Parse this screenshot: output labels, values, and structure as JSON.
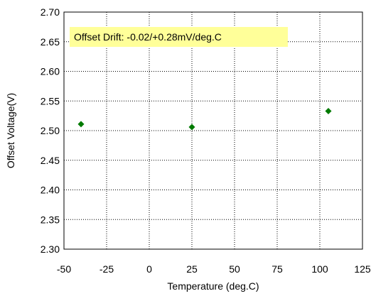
{
  "chart_data": {
    "type": "scatter",
    "title": "",
    "xlabel": "Temperature (deg.C)",
    "ylabel": "Offset Voltage(V)",
    "xlim": [
      -50,
      125
    ],
    "ylim": [
      2.3,
      2.7
    ],
    "xticks": [
      -50,
      -25,
      0,
      25,
      50,
      75,
      100,
      125
    ],
    "yticks": [
      2.3,
      2.35,
      2.4,
      2.45,
      2.5,
      2.55,
      2.6,
      2.65,
      2.7
    ],
    "xtick_labels": [
      "-50",
      "-25",
      "0",
      "25",
      "50",
      "75",
      "100",
      "125"
    ],
    "ytick_labels": [
      "2.30",
      "2.35",
      "2.40",
      "2.45",
      "2.50",
      "2.55",
      "2.60",
      "2.65",
      "2.70"
    ],
    "grid": true,
    "series": [
      {
        "x": [
          -40,
          25,
          105
        ],
        "y": [
          2.511,
          2.506,
          2.533
        ],
        "color": "#007a00",
        "marker": "diamond"
      }
    ],
    "annotation": {
      "text": "Offset Drift: -0.02/+0.28mV/deg.C",
      "background": "#ffff99"
    }
  }
}
